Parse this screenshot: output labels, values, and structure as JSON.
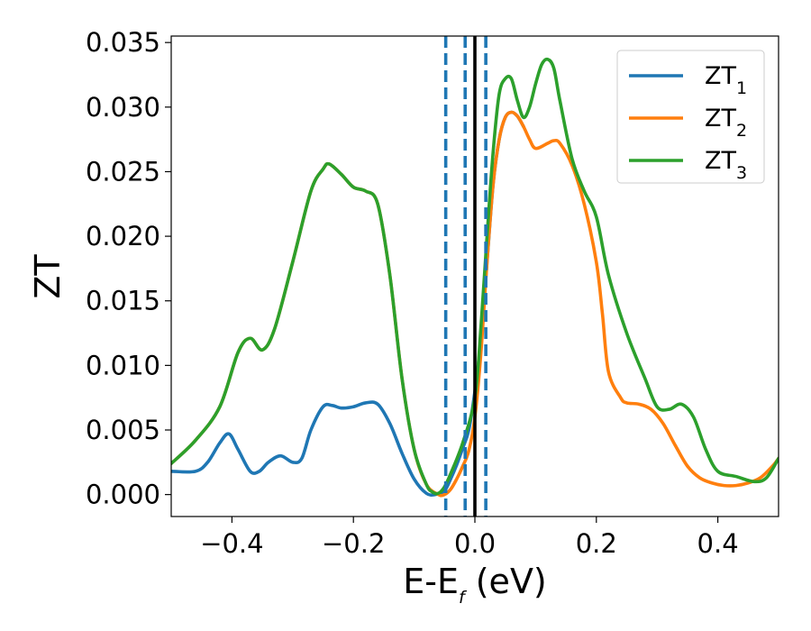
{
  "chart_data": {
    "type": "line",
    "xlabel": "E-E",
    "xlabel_subscript": "f",
    "xlabel_unit": " (eV)",
    "ylabel": "ZT",
    "xlim": [
      -0.5,
      0.5
    ],
    "ylim": [
      -0.0017,
      0.0355
    ],
    "xticks": [
      -0.4,
      -0.2,
      0.0,
      0.2,
      0.4
    ],
    "xtick_labels": [
      "−0.4",
      "−0.2",
      "0.0",
      "0.2",
      "0.4"
    ],
    "yticks": [
      0.0,
      0.005,
      0.01,
      0.015,
      0.02,
      0.025,
      0.03,
      0.035
    ],
    "ytick_labels": [
      "0.000",
      "0.005",
      "0.010",
      "0.015",
      "0.020",
      "0.025",
      "0.030",
      "0.035"
    ],
    "grid": false,
    "legend_position": "top-right",
    "series": [
      {
        "name": "ZT",
        "name_subscript": "1",
        "color": "#1f77b4",
        "x": [
          -0.5,
          -0.46,
          -0.44,
          -0.42,
          -0.405,
          -0.39,
          -0.37,
          -0.355,
          -0.34,
          -0.32,
          -0.3,
          -0.285,
          -0.27,
          -0.25,
          -0.235,
          -0.22,
          -0.2,
          -0.18,
          -0.16,
          -0.14,
          -0.12,
          -0.1,
          -0.08,
          -0.065,
          -0.05,
          -0.04,
          -0.03,
          -0.02,
          -0.01,
          0.0,
          0.01,
          0.02,
          0.03,
          0.04,
          0.05,
          0.06,
          0.07,
          0.08
        ],
        "y": [
          0.0018,
          0.0018,
          0.0025,
          0.004,
          0.0047,
          0.0035,
          0.0018,
          0.0018,
          0.0025,
          0.003,
          0.0025,
          0.0028,
          0.005,
          0.0068,
          0.0069,
          0.0067,
          0.0068,
          0.0071,
          0.007,
          0.0055,
          0.0032,
          0.0012,
          0.0001,
          0.0,
          0.0003,
          0.0012,
          0.0023,
          0.0036,
          0.005,
          0.008,
          0.012,
          0.018,
          0.024,
          0.0275,
          0.0292,
          0.0296,
          0.0293,
          0.0285
        ]
      },
      {
        "name": "ZT",
        "name_subscript": "2",
        "color": "#ff7f0e",
        "x": [
          -0.5,
          -0.46,
          -0.42,
          -0.39,
          -0.37,
          -0.35,
          -0.33,
          -0.3,
          -0.27,
          -0.25,
          -0.24,
          -0.22,
          -0.2,
          -0.18,
          -0.16,
          -0.14,
          -0.12,
          -0.1,
          -0.08,
          -0.06,
          -0.05,
          -0.04,
          -0.03,
          -0.02,
          -0.01,
          0.0,
          0.01,
          0.02,
          0.03,
          0.04,
          0.05,
          0.06,
          0.07,
          0.08,
          0.09,
          0.1,
          0.12,
          0.13,
          0.14,
          0.16,
          0.18,
          0.2,
          0.21,
          0.22,
          0.24,
          0.25,
          0.27,
          0.29,
          0.31,
          0.33,
          0.35,
          0.37,
          0.39,
          0.41,
          0.43,
          0.45,
          0.47,
          0.49,
          0.5
        ],
        "y": [
          0.0024,
          0.0042,
          0.0068,
          0.011,
          0.0121,
          0.0112,
          0.0128,
          0.018,
          0.0235,
          0.0252,
          0.0256,
          0.0248,
          0.0238,
          0.0235,
          0.0225,
          0.017,
          0.009,
          0.0035,
          0.0008,
          0.0,
          0.0,
          0.0004,
          0.0012,
          0.0022,
          0.0034,
          0.006,
          0.011,
          0.018,
          0.024,
          0.0275,
          0.0292,
          0.0296,
          0.0293,
          0.0285,
          0.0275,
          0.0268,
          0.0272,
          0.0274,
          0.0272,
          0.0255,
          0.0225,
          0.018,
          0.014,
          0.0095,
          0.0075,
          0.0071,
          0.007,
          0.0066,
          0.0055,
          0.0038,
          0.0022,
          0.0013,
          0.0009,
          0.0007,
          0.0007,
          0.0009,
          0.0013,
          0.0022,
          0.0028
        ]
      },
      {
        "name": "ZT",
        "name_subscript": "3",
        "color": "#2ca02c",
        "x": [
          -0.5,
          -0.46,
          -0.42,
          -0.39,
          -0.37,
          -0.35,
          -0.33,
          -0.3,
          -0.27,
          -0.25,
          -0.24,
          -0.22,
          -0.2,
          -0.18,
          -0.16,
          -0.14,
          -0.12,
          -0.1,
          -0.08,
          -0.07,
          -0.06,
          -0.05,
          -0.04,
          -0.02,
          0.0,
          0.01,
          0.02,
          0.03,
          0.04,
          0.05,
          0.06,
          0.07,
          0.08,
          0.09,
          0.1,
          0.11,
          0.12,
          0.13,
          0.14,
          0.16,
          0.18,
          0.2,
          0.22,
          0.25,
          0.28,
          0.3,
          0.32,
          0.34,
          0.36,
          0.38,
          0.4,
          0.43,
          0.46,
          0.48,
          0.5
        ],
        "y": [
          0.0024,
          0.0042,
          0.0068,
          0.011,
          0.0121,
          0.0112,
          0.0128,
          0.018,
          0.0235,
          0.0252,
          0.0256,
          0.0248,
          0.0238,
          0.0235,
          0.0225,
          0.017,
          0.009,
          0.0035,
          0.0008,
          0.0002,
          0.0001,
          0.0006,
          0.0016,
          0.004,
          0.0075,
          0.013,
          0.02,
          0.0265,
          0.031,
          0.0322,
          0.0322,
          0.0305,
          0.0292,
          0.03,
          0.0318,
          0.0333,
          0.0337,
          0.033,
          0.0305,
          0.026,
          0.0235,
          0.0215,
          0.017,
          0.0125,
          0.009,
          0.0068,
          0.0066,
          0.007,
          0.006,
          0.0035,
          0.0018,
          0.0014,
          0.001,
          0.0013,
          0.0028
        ]
      }
    ],
    "vertical_lines": [
      {
        "x": -0.048,
        "style": "dashed",
        "color": "#1f77b4"
      },
      {
        "x": -0.016,
        "style": "dashed",
        "color": "#1f77b4"
      },
      {
        "x": 0.018,
        "style": "dashed",
        "color": "#1f77b4"
      },
      {
        "x": 0.0,
        "style": "solid",
        "color": "#000000"
      }
    ]
  }
}
